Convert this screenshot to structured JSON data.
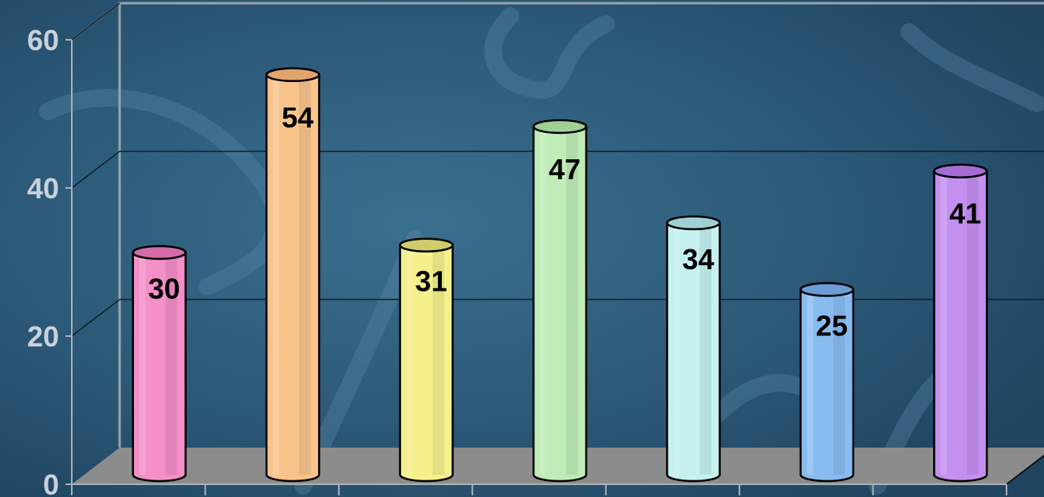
{
  "chart_data": {
    "type": "bar",
    "style": "3d-cylinder",
    "title": "",
    "xlabel": "",
    "ylabel": "",
    "ylim": [
      0,
      60
    ],
    "y_ticks": [
      "0",
      "20",
      "40",
      "60"
    ],
    "grid": true,
    "legend": "none",
    "values": [
      30,
      54,
      31,
      47,
      34,
      25,
      41
    ],
    "data_labels": [
      "30",
      "54",
      "31",
      "47",
      "34",
      "25",
      "41"
    ],
    "colors": [
      "#f48fc8",
      "#f8c48c",
      "#f4f08c",
      "#c0ecb8",
      "#c4f0f0",
      "#88bcf0",
      "#c490f0"
    ],
    "cap_colors": [
      "#d46ca8",
      "#e0a46c",
      "#d0cc6c",
      "#a0d098",
      "#a0d0d4",
      "#6c9cd4",
      "#a46cd4"
    ]
  },
  "theme": {
    "background": "#27526f",
    "floor": "#8c8c8c",
    "wall_line": "#9aa4ad",
    "grid_line": "#10202c",
    "tick_text": "#c8d2da"
  }
}
